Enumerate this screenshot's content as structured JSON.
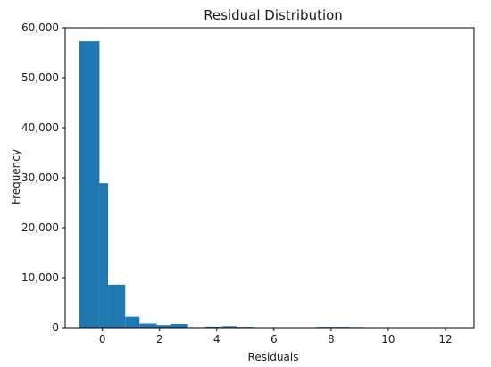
{
  "chart_data": {
    "type": "bar",
    "title": "Residual Distribution",
    "xlabel": "Residuals",
    "ylabel": "Frequency",
    "bar_color": "#1f77b4",
    "xlim": [
      -1.3,
      13.0
    ],
    "ylim": [
      0,
      60000
    ],
    "bin_edges": [
      -0.8,
      -0.1,
      0.2,
      0.8,
      1.3,
      1.9,
      2.4,
      3.0,
      3.6,
      4.2,
      4.7,
      5.3,
      5.8,
      6.4,
      6.9,
      7.5,
      8.0,
      8.6,
      9.1,
      9.7,
      10.2,
      10.8,
      11.3,
      11.9,
      12.6
    ],
    "values": [
      57300,
      28900,
      8600,
      2200,
      800,
      500,
      700,
      100,
      200,
      300,
      150,
      60,
      40,
      20,
      10,
      150,
      150,
      120,
      10,
      10,
      10,
      10,
      10,
      10
    ],
    "x_ticks": [
      0,
      2,
      4,
      6,
      8,
      10,
      12
    ],
    "x_tick_labels": [
      "0",
      "2",
      "4",
      "6",
      "8",
      "10",
      "12"
    ],
    "y_ticks": [
      0,
      10000,
      20000,
      30000,
      40000,
      50000,
      60000
    ],
    "y_tick_labels": [
      "0",
      "10,000",
      "20,000",
      "30,000",
      "40,000",
      "50,000",
      "60,000"
    ],
    "grid": false,
    "legend": "none"
  }
}
